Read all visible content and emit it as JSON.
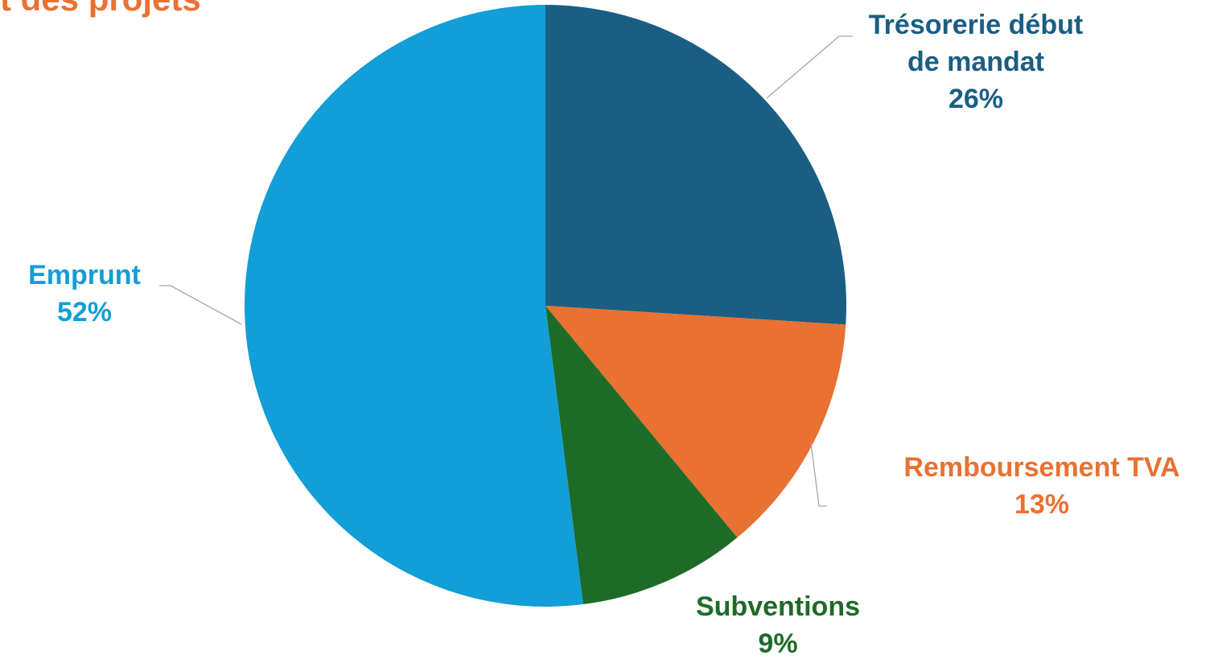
{
  "chart_data": {
    "type": "pie",
    "title": "t des projets",
    "slices": [
      {
        "label_lines": [
          "Trésorerie début",
          "de mandat"
        ],
        "value": 26,
        "value_label": "26%",
        "color": "#1A5E83"
      },
      {
        "label_lines": [
          "Remboursement TVA"
        ],
        "value": 13,
        "value_label": "13%",
        "color": "#E97132"
      },
      {
        "label_lines": [
          "Subventions"
        ],
        "value": 9,
        "value_label": "9%",
        "color": "#1E6B28"
      },
      {
        "label_lines": [
          "Emprunt"
        ],
        "value": 52,
        "value_label": "52%",
        "color": "#129ED6"
      }
    ],
    "start_angle_deg": 0,
    "direction": "clockwise",
    "leader_line_color": "#A6A6A6",
    "background_color": "#FFFFFF"
  }
}
